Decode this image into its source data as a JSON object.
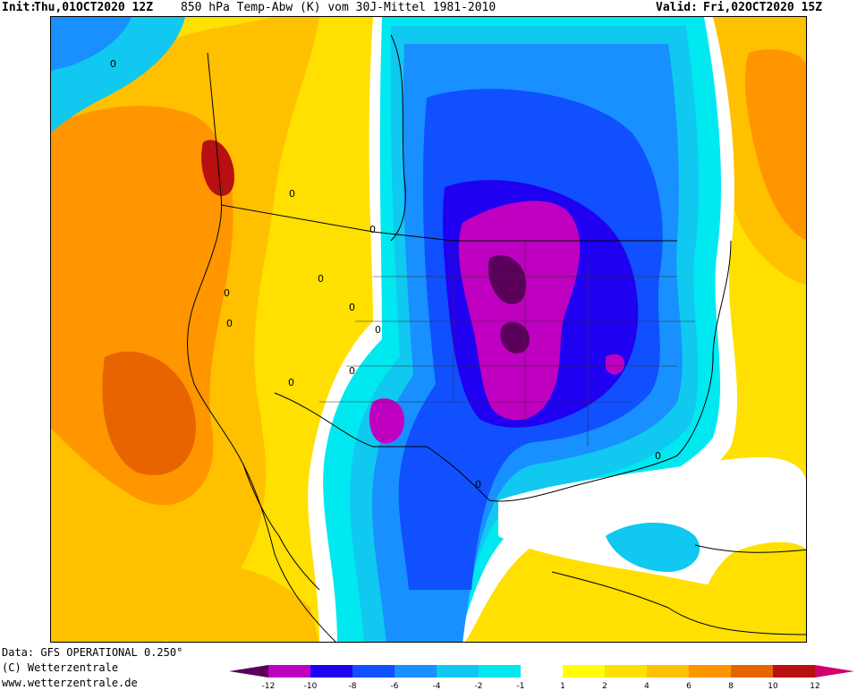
{
  "header": {
    "init_label": "Init:",
    "init_value": "Thu,01OCT2020 12Z",
    "parameter": "850 hPa Temp-Abw (K) vom 30J-Mittel 1981-2010",
    "valid_label": "Valid:",
    "valid_value": "Fri,02OCT2020 15Z"
  },
  "footer": {
    "data_source": "Data: GFS OPERATIONAL 0.250°",
    "copyright": "(C) Wetterzentrale",
    "website": "www.wetterzentrale.de"
  },
  "contour_labels": [
    "0",
    "0",
    "0",
    "0",
    "0",
    "0",
    "0",
    "0",
    "0",
    "0",
    "0",
    "0"
  ],
  "legend": {
    "unit": "K",
    "ticks": [
      "-12",
      "-10",
      "-8",
      "-6",
      "-4",
      "-2",
      "-1",
      "1",
      "2",
      "4",
      "6",
      "8",
      "10",
      "12"
    ],
    "colors": {
      "below_-12": "#5a005a",
      "-12_-10": "#c000c0",
      "-10_-8": "#2000f0",
      "-8_-6": "#1050ff",
      "-6_-4": "#1890ff",
      "-4_-2": "#10c8f0",
      "-2_-1": "#00e8f0",
      "-1_1": "#ffffff",
      "1_2": "#ffff00",
      "2_4": "#ffe000",
      "4_6": "#ffc000",
      "6_8": "#ff9600",
      "8_10": "#e86400",
      "10_12": "#b81010",
      "above_12": "#d0006e"
    }
  }
}
